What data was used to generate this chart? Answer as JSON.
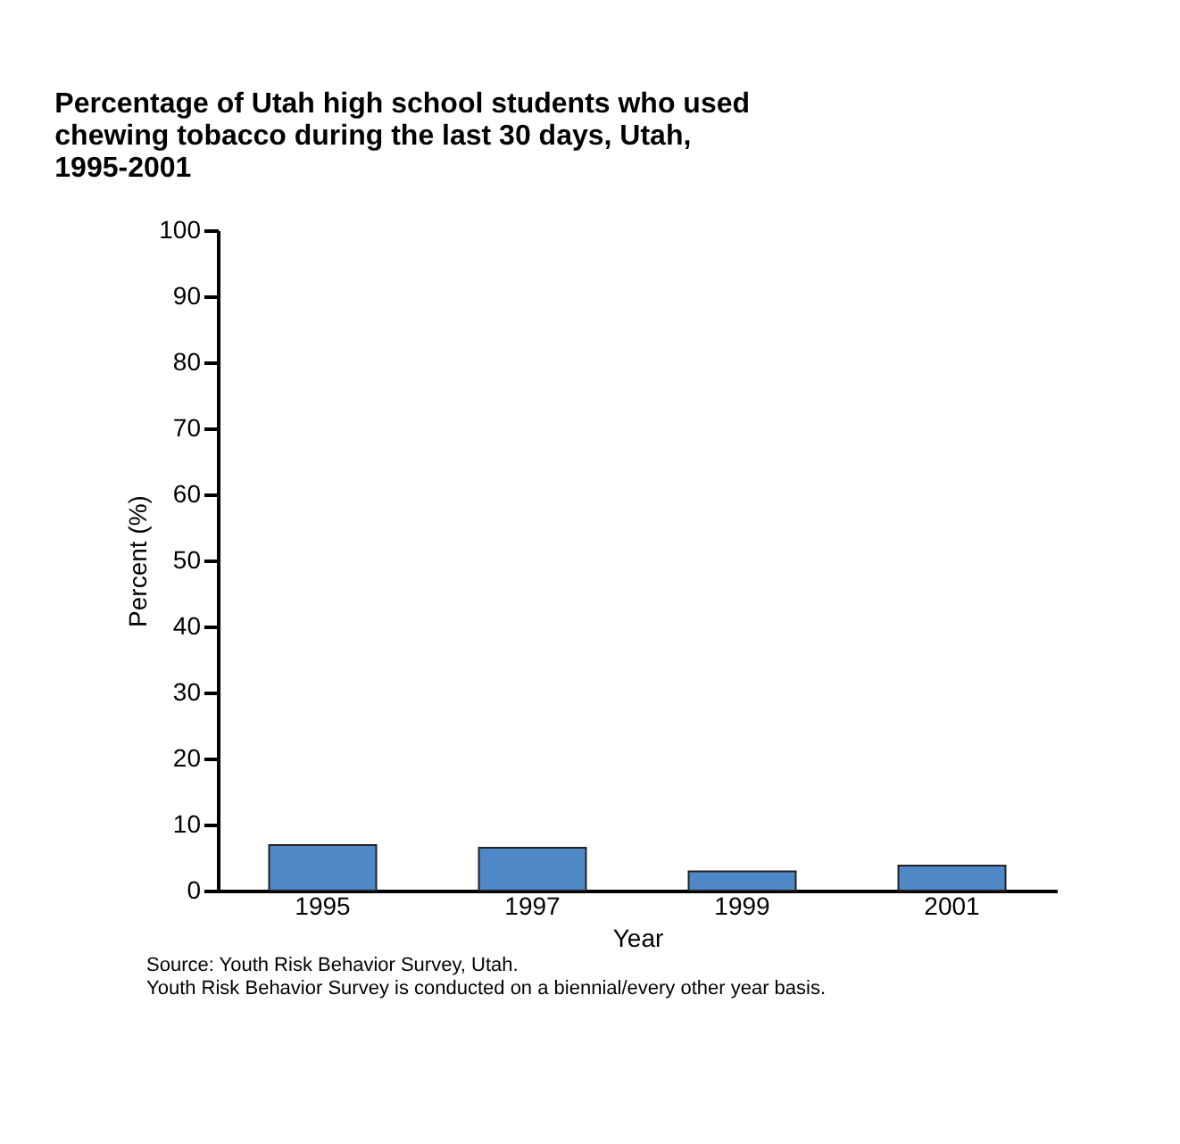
{
  "chart_data": {
    "type": "bar",
    "title": [
      "Percentage of Utah high school students who used",
      "chewing tobacco during the last 30 days, Utah,",
      "1995-2001"
    ],
    "xlabel": "Year",
    "ylabel": "Percent (%)",
    "categories": [
      "1995",
      "1997",
      "1999",
      "2001"
    ],
    "values": [
      6.9,
      6.5,
      2.9,
      3.8
    ],
    "color": "#4f88c6",
    "ylim": [
      0,
      100
    ],
    "yticks": [
      0,
      10,
      20,
      30,
      40,
      50,
      60,
      70,
      80,
      90,
      100
    ],
    "grid": false,
    "annotations": [
      "Source: Youth Risk Behavior Survey, Utah.",
      "Youth Risk Behavior Survey is conducted on a biennial/every other year basis."
    ]
  }
}
